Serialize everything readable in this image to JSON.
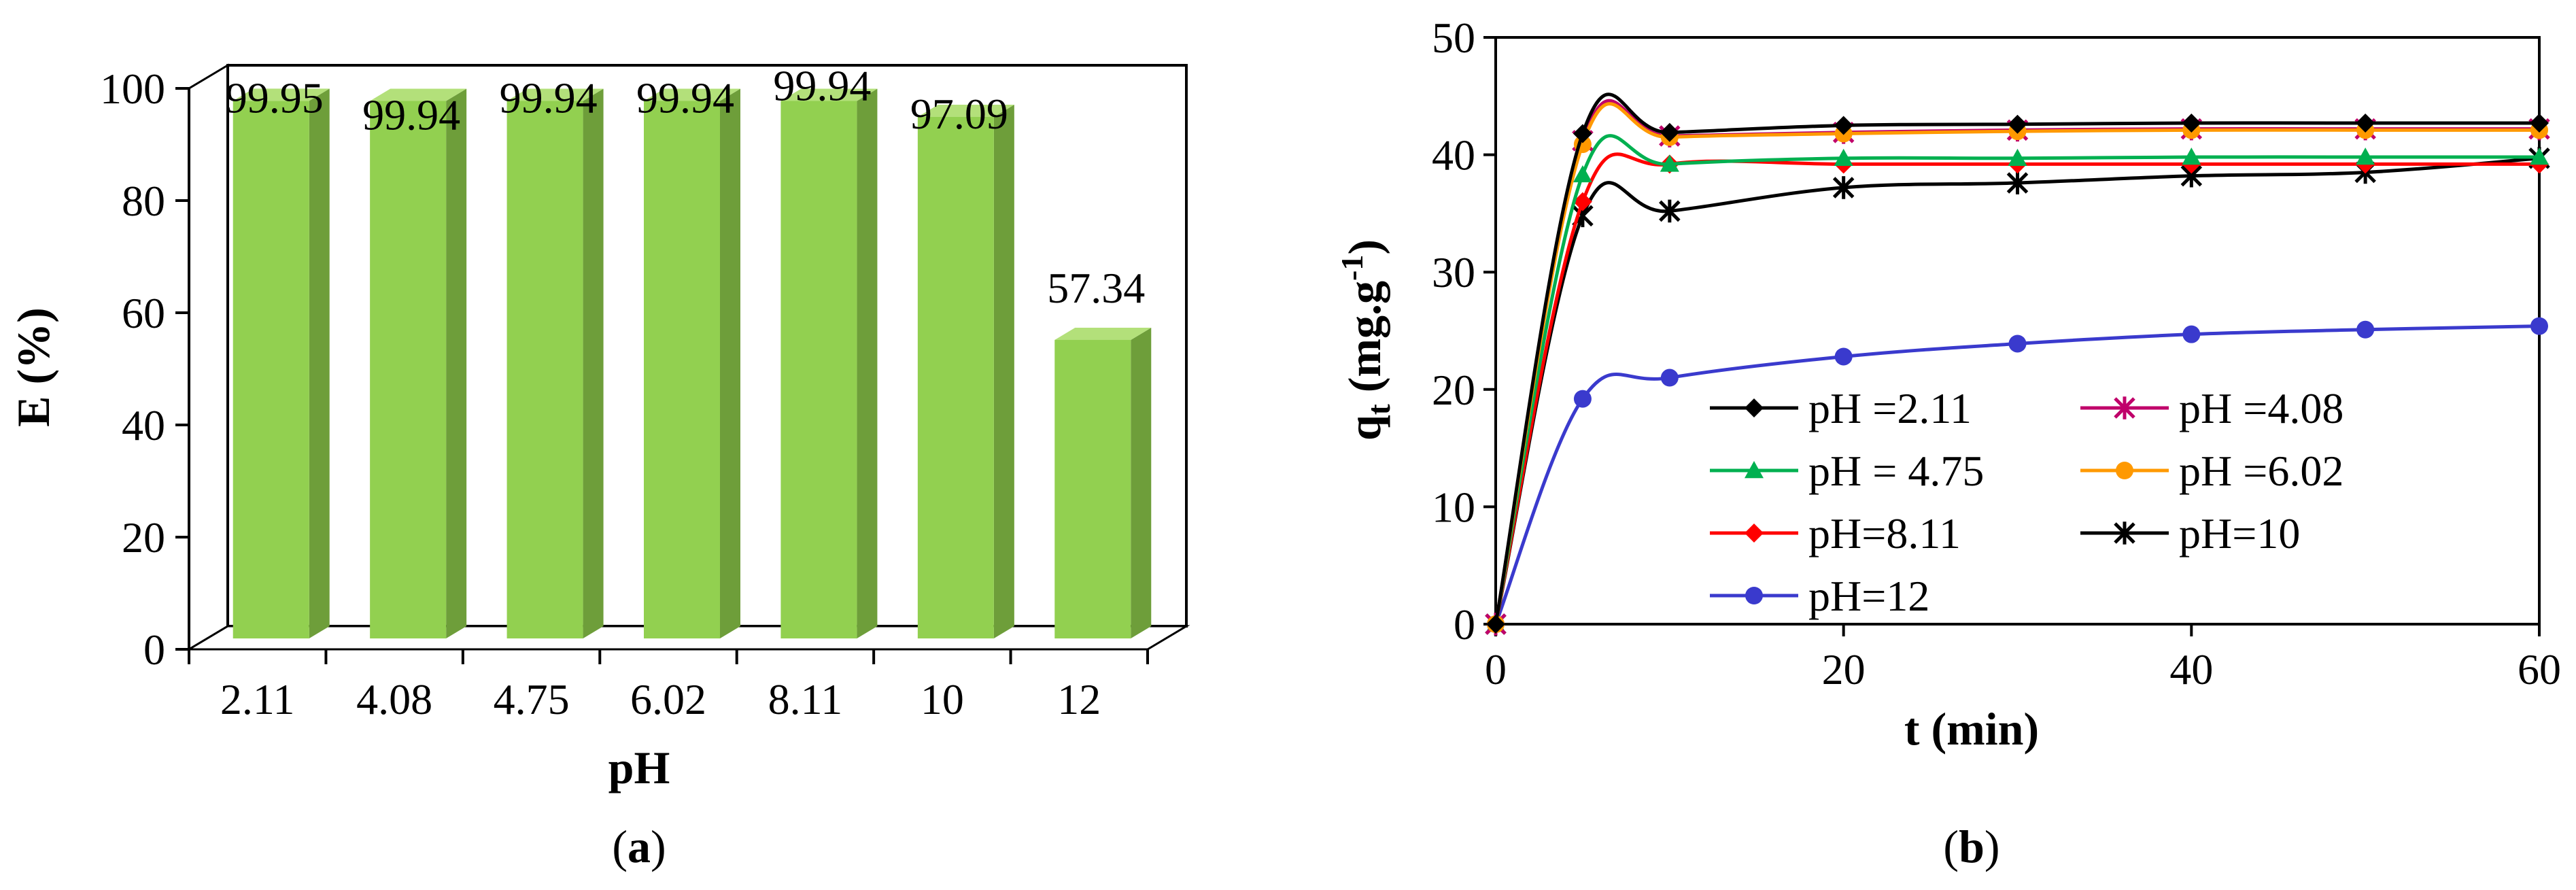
{
  "colors": {
    "bar_face": "#92D050",
    "bar_side": "#6E9E3A",
    "bar_top": "#B3E07A",
    "axis": "#000000",
    "frame": "#000000"
  },
  "captions": {
    "a_open": "(",
    "a_letter": "a",
    "a_close": ")",
    "b_open": "(",
    "b_letter": "b",
    "b_close": ")"
  },
  "chart_data": [
    {
      "id": "a",
      "type": "bar",
      "title": "",
      "xlabel": "pH",
      "ylabel": "E (%)",
      "ylim": [
        0,
        100
      ],
      "yticks": [
        "0",
        "20",
        "40",
        "60",
        "80",
        "100"
      ],
      "categories": [
        "2.11",
        "4.08",
        "4.75",
        "6.02",
        "8.11",
        "10",
        "12"
      ],
      "values": [
        99.95,
        99.94,
        99.94,
        99.94,
        99.94,
        97.09,
        57.34
      ],
      "data_labels": [
        "99.95",
        "99.94",
        "99.94",
        "99.94",
        "99.94",
        "97.09",
        "57.34"
      ],
      "style": "3d-column"
    },
    {
      "id": "b",
      "type": "line",
      "title": "",
      "xlabel": "t (min)",
      "ylabel_main": "q",
      "ylabel_sub": "t",
      "ylabel_unit": " (mg.g",
      "ylabel_sup": "-1",
      "ylabel_close": ")",
      "xlim": [
        0,
        60
      ],
      "ylim": [
        0,
        50
      ],
      "xticks": [
        "0",
        "20",
        "40",
        "60"
      ],
      "yticks": [
        "0",
        "10",
        "20",
        "30",
        "40",
        "50"
      ],
      "x": [
        0,
        5,
        10,
        20,
        30,
        40,
        50,
        60
      ],
      "legend_position": "lower-right",
      "series": [
        {
          "name": "pH =2.11",
          "color": "#000000",
          "marker": "diamond",
          "values": [
            0,
            41.8,
            41.9,
            42.5,
            42.6,
            42.7,
            42.7,
            42.7
          ]
        },
        {
          "name": "pH =4.08",
          "color": "#C0006A",
          "marker": "star",
          "values": [
            0,
            41.2,
            41.6,
            41.9,
            42.1,
            42.2,
            42.2,
            42.2
          ]
        },
        {
          "name": "pH = 4.75",
          "color": "#00B050",
          "marker": "triangle",
          "values": [
            0,
            38.3,
            39.2,
            39.7,
            39.7,
            39.8,
            39.8,
            39.8
          ]
        },
        {
          "name": "pH =6.02",
          "color": "#FF9900",
          "marker": "circle",
          "values": [
            0,
            40.9,
            41.5,
            41.8,
            42.0,
            42.1,
            42.1,
            42.1
          ]
        },
        {
          "name": "pH=8.11",
          "color": "#FF0000",
          "marker": "diamond",
          "values": [
            0,
            36.0,
            39.2,
            39.2,
            39.2,
            39.2,
            39.2,
            39.2
          ]
        },
        {
          "name": "pH=10",
          "color": "#000000",
          "marker": "star",
          "values": [
            0,
            34.8,
            35.2,
            37.2,
            37.6,
            38.2,
            38.5,
            39.7
          ]
        },
        {
          "name": "pH=12",
          "color": "#3A3ACD",
          "marker": "circle",
          "values": [
            0,
            19.2,
            21.0,
            22.8,
            23.9,
            24.7,
            25.1,
            25.4
          ]
        }
      ]
    }
  ]
}
